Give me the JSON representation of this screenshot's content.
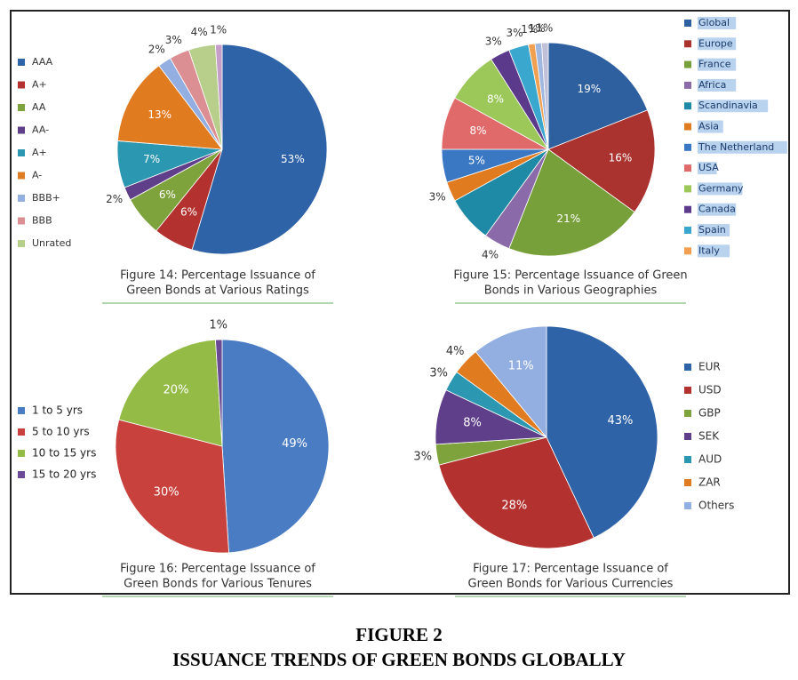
{
  "chart_data": [
    {
      "type": "pie",
      "title": [
        "Figure 14: Percentage Issuance of",
        "Green Bonds at Various Ratings"
      ],
      "categories": [
        "AAA",
        "A+",
        "AA",
        "AA-",
        "A+",
        "A-",
        "BBB+",
        "BBB",
        "Unrated",
        null
      ],
      "values": [
        53,
        6,
        6,
        2,
        7,
        13,
        2,
        3,
        4,
        1
      ],
      "value_labels": [
        "53%",
        "6%",
        "6%",
        "2%",
        "7%",
        "13%",
        "2%",
        "3%",
        "4%",
        "1%"
      ],
      "colors": [
        "#2f63a8",
        "#b3322f",
        "#7fa33c",
        "#5f3f8a",
        "#2b97b0",
        "#e07b20",
        "#93aee0",
        "#dc8f93",
        "#b7cf8a",
        "#c49ec9"
      ]
    },
    {
      "type": "pie",
      "title": [
        "Figure 15: Percentage Issuance of Green",
        "Bonds in Various Geographies"
      ],
      "categories": [
        "Global",
        "Europe",
        "France",
        "Africa",
        "Scandinavia",
        "Asia",
        "The Netherland",
        "USA",
        "Germany",
        "Canada",
        "Spain",
        "Italy",
        null,
        null
      ],
      "values": [
        19,
        16,
        21,
        4,
        7,
        3,
        5,
        8,
        8,
        3,
        3,
        1,
        1,
        1
      ],
      "value_labels": [
        "19%",
        "16%",
        "21%",
        "4%",
        null,
        "3%",
        "5%",
        "8%",
        "8%",
        "3%",
        "3%",
        "1%",
        "1%",
        "1%"
      ],
      "colors": [
        "#2e5f9e",
        "#aa3330",
        "#78a03a",
        "#8a6aa8",
        "#1e8aa5",
        "#e07b20",
        "#3b78c4",
        "#e06a6a",
        "#9cc85a",
        "#5b3a8c",
        "#3aa7cf",
        "#f0a050",
        "#a0b8e0",
        "#c0c0d8"
      ]
    },
    {
      "type": "pie",
      "title": [
        "Figure 16: Percentage Issuance of",
        "Green Bonds for Various Tenures"
      ],
      "categories": [
        "1 to 5 yrs",
        "5 to 10 yrs",
        "10 to 15 yrs",
        "15 to 20 yrs"
      ],
      "values": [
        49,
        30,
        20,
        1
      ],
      "value_labels": [
        "49%",
        "30%",
        "20%",
        "1%"
      ],
      "colors": [
        "#4a7cc4",
        "#c8413c",
        "#93bb46",
        "#6a4a94"
      ]
    },
    {
      "type": "pie",
      "title": [
        "Figure 17: Percentage Issuance of",
        "Green Bonds for Various Currencies"
      ],
      "categories": [
        "EUR",
        "USD",
        "GBP",
        "SEK",
        "AUD",
        "ZAR",
        "Others"
      ],
      "values": [
        43,
        28,
        3,
        8,
        3,
        4,
        11
      ],
      "value_labels": [
        "43%",
        "28%",
        "3%",
        "8%",
        "3%",
        "4%",
        "11%"
      ],
      "colors": [
        "#2f63a8",
        "#b3322f",
        "#7fa33c",
        "#5f3f8a",
        "#2b97b0",
        "#e07b20",
        "#93aee0"
      ]
    }
  ],
  "caption": {
    "number": "FIGURE 2",
    "text": "ISSUANCE TRENDS OF GREEN BONDS GLOBALLY"
  }
}
